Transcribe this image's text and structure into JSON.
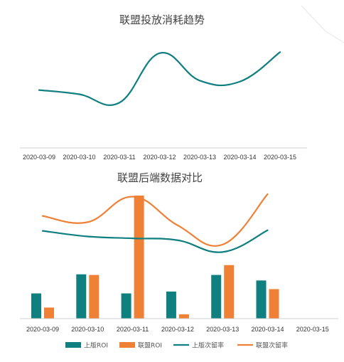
{
  "colors": {
    "teal": "#0f7f80",
    "orange": "#ee8135",
    "axis": "#d0d0d0"
  },
  "chart_data": [
    {
      "type": "line",
      "title": "联盟投放消耗趋势",
      "categories": [
        "2020-03-09",
        "2020-03-10",
        "2020-03-11",
        "2020-03-12",
        "2020-03-13",
        "2020-03-14",
        "2020-03-15"
      ],
      "ylim": [
        0,
        100
      ],
      "grid": false,
      "legend": "none",
      "series": [
        {
          "color": "#0f7f80",
          "values": [
            55,
            51,
            43,
            90,
            64,
            63,
            91
          ]
        }
      ]
    },
    {
      "type": "bar",
      "title": "联盟后端数据对比",
      "categories": [
        "2020-03-09",
        "2020-03-10",
        "2020-03-11",
        "2020-03-12",
        "2020-03-13",
        "2020-03-14",
        "2020-03-15"
      ],
      "bar_ylim": [
        0,
        100
      ],
      "line_ylim": [
        0,
        100
      ],
      "grid": false,
      "legend": "bottom",
      "series": [
        {
          "name": "上版ROI",
          "kind": "bar",
          "color": "#0f7f80",
          "values": [
            20.5,
            36,
            20.5,
            22,
            35.5,
            31,
            null
          ]
        },
        {
          "name": "联盟ROI",
          "kind": "bar",
          "color": "#ee8135",
          "values": [
            9,
            35.5,
            100,
            3.5,
            43.5,
            24,
            null
          ]
        },
        {
          "name": "上版次留率",
          "kind": "line",
          "color": "#0f7f80",
          "values": [
            70.5,
            66,
            64.5,
            63,
            53.5,
            71,
            null
          ]
        },
        {
          "name": "联盟次留率",
          "kind": "line",
          "color": "#ee8135",
          "values": [
            82.5,
            77.5,
            98,
            75,
            59.5,
            100,
            null
          ]
        }
      ]
    }
  ]
}
